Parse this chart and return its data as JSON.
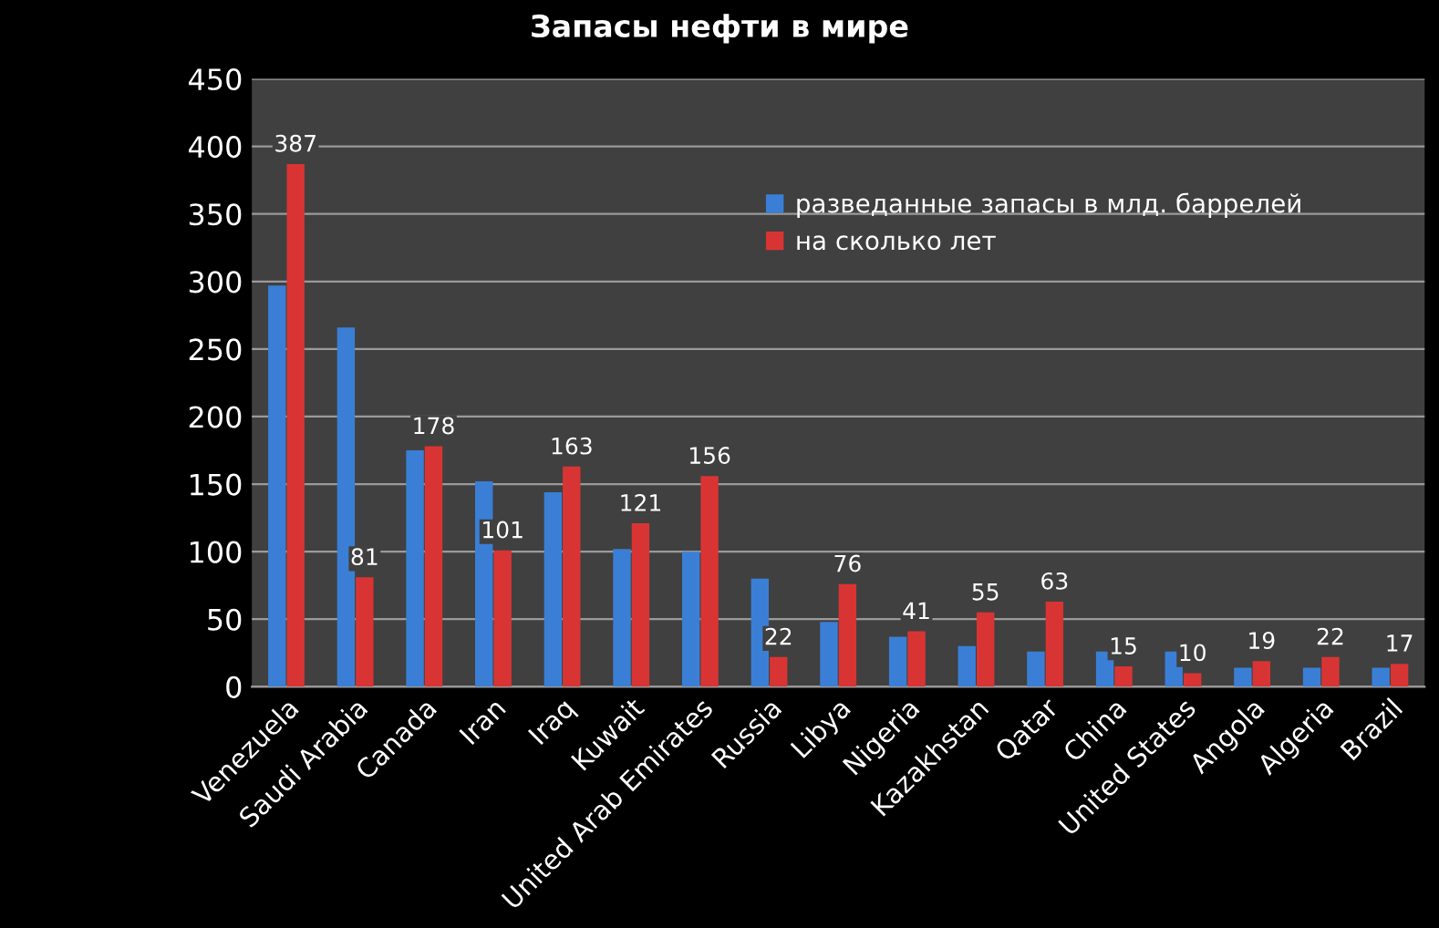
{
  "chart_data": {
    "type": "bar",
    "title": "Запасы нефти в мире",
    "categories": [
      "Venezuela",
      "Saudi Arabia",
      "Canada",
      "Iran",
      "Iraq",
      "Kuwait",
      "United Arab Emirates",
      "Russia",
      "Libya",
      "Nigeria",
      "Kazakhstan",
      "Qatar",
      "China",
      "United States",
      "Angola",
      "Algeria",
      "Brazil"
    ],
    "series": [
      {
        "name": "разведанные запасы в млд. баррелей",
        "color": "#3a7fd5",
        "values": [
          297,
          266,
          175,
          152,
          144,
          102,
          100,
          80,
          48,
          37,
          30,
          26,
          26,
          26,
          14,
          14,
          14
        ]
      },
      {
        "name": "на сколько лет",
        "color": "#d93434",
        "values": [
          387,
          81,
          178,
          101,
          163,
          121,
          156,
          22,
          76,
          41,
          55,
          63,
          15,
          10,
          19,
          22,
          17
        ],
        "value_labels": [
          "387",
          "81",
          "178",
          "101",
          "163",
          "121",
          "156",
          "22",
          "76",
          "41",
          "55",
          "63",
          "15",
          "10",
          "19",
          "22",
          "17"
        ]
      }
    ],
    "ylim": [
      0,
      450
    ],
    "yticks": [
      0,
      50,
      100,
      150,
      200,
      250,
      300,
      350,
      400,
      450
    ],
    "grid": "y",
    "legend": "top right"
  }
}
